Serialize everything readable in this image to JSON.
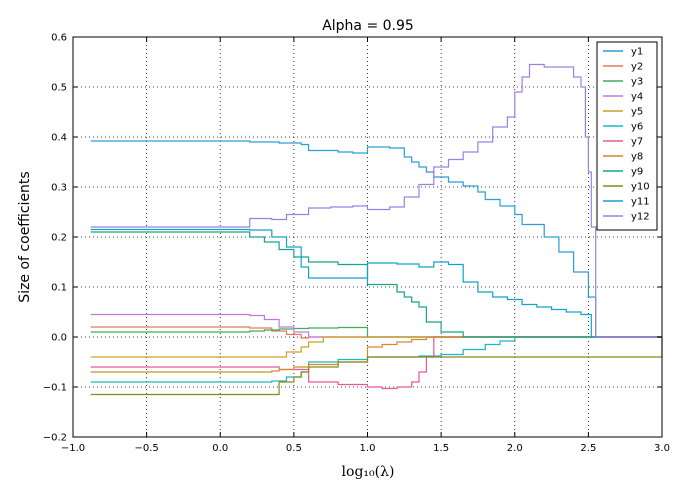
{
  "chart_data": {
    "type": "line",
    "title": "Alpha = 0.95",
    "xlabel": "log₁₀(λ)",
    "ylabel": "Size of coefficients",
    "xlim": [
      -1.0,
      3.0
    ],
    "ylim": [
      -0.2,
      0.6
    ],
    "xticks": [
      -1.0,
      -0.5,
      0.0,
      0.5,
      1.0,
      1.5,
      2.0,
      2.5,
      3.0
    ],
    "xtick_labels": [
      "−1.0",
      "−0.5",
      "0.0",
      "0.5",
      "1.0",
      "1.5",
      "2.0",
      "2.5",
      "3.0"
    ],
    "yticks": [
      -0.2,
      -0.1,
      0.0,
      0.1,
      0.2,
      0.3,
      0.4,
      0.5,
      0.6
    ],
    "ytick_labels": [
      "−0.2",
      "−0.1",
      "0.0",
      "0.1",
      "0.2",
      "0.3",
      "0.4",
      "0.5",
      "0.6"
    ],
    "grid": true,
    "legend_position": "top-right",
    "step": true,
    "series": [
      {
        "name": "y1",
        "color": "#2a9fd6",
        "x": [
          -0.88,
          0.2,
          0.4,
          0.55,
          0.6,
          0.8,
          0.9,
          1.0,
          1.15,
          1.25,
          1.3,
          1.35,
          1.4,
          1.45,
          1.55,
          1.65,
          1.75,
          1.8,
          1.9,
          2.0,
          2.05,
          2.2,
          2.3,
          2.4,
          2.5,
          2.55,
          3.0
        ],
        "y": [
          0.392,
          0.39,
          0.388,
          0.385,
          0.373,
          0.37,
          0.368,
          0.38,
          0.378,
          0.36,
          0.35,
          0.34,
          0.33,
          0.32,
          0.31,
          0.302,
          0.29,
          0.275,
          0.262,
          0.245,
          0.225,
          0.2,
          0.17,
          0.13,
          0.08,
          0.0,
          0.0
        ]
      },
      {
        "name": "y2",
        "color": "#e8795a",
        "x": [
          -0.88,
          0.2,
          0.35,
          0.45,
          0.55,
          0.6,
          3.0
        ],
        "y": [
          0.02,
          0.018,
          0.012,
          0.005,
          -0.002,
          0.0,
          0.0
        ]
      },
      {
        "name": "y3",
        "color": "#3fae5a",
        "x": [
          -0.88,
          0.2,
          0.3,
          0.4,
          0.5,
          0.6,
          0.8,
          1.0,
          3.0
        ],
        "y": [
          0.01,
          0.012,
          0.014,
          0.016,
          0.017,
          0.018,
          0.019,
          0.0,
          0.0
        ]
      },
      {
        "name": "y4",
        "color": "#c07ad8",
        "x": [
          -0.88,
          0.2,
          0.3,
          0.4,
          0.5,
          0.6,
          3.0
        ],
        "y": [
          0.045,
          0.043,
          0.035,
          0.02,
          0.01,
          0.0,
          0.0
        ]
      },
      {
        "name": "y5",
        "color": "#c9a227",
        "x": [
          -0.88,
          0.35,
          0.45,
          0.55,
          0.6,
          0.7,
          3.0
        ],
        "y": [
          -0.04,
          -0.04,
          -0.03,
          -0.02,
          -0.01,
          0.0,
          0.0
        ]
      },
      {
        "name": "y6",
        "color": "#1fb8c6",
        "x": [
          -0.88,
          0.2,
          0.35,
          0.45,
          0.55,
          0.6,
          0.8,
          1.0,
          1.2,
          1.35,
          1.5,
          1.65,
          1.8,
          1.9,
          2.0,
          3.0
        ],
        "y": [
          -0.09,
          -0.09,
          -0.088,
          -0.08,
          -0.07,
          -0.05,
          -0.045,
          -0.04,
          -0.04,
          -0.038,
          -0.035,
          -0.025,
          -0.015,
          -0.008,
          0.0,
          0.0
        ]
      },
      {
        "name": "y7",
        "color": "#e8589a",
        "x": [
          -0.88,
          0.2,
          0.4,
          0.6,
          0.8,
          1.0,
          1.1,
          1.2,
          1.3,
          1.35,
          1.4,
          1.45,
          3.0
        ],
        "y": [
          -0.06,
          -0.06,
          -0.065,
          -0.09,
          -0.095,
          -0.1,
          -0.103,
          -0.1,
          -0.09,
          -0.07,
          -0.04,
          0.0,
          0.0
        ]
      },
      {
        "name": "y8",
        "color": "#d48a2a",
        "x": [
          -0.88,
          0.2,
          0.35,
          0.4,
          0.5,
          0.6,
          0.8,
          1.0,
          1.1,
          1.2,
          1.3,
          1.4,
          3.0
        ],
        "y": [
          -0.07,
          -0.07,
          -0.068,
          -0.065,
          -0.06,
          -0.055,
          -0.05,
          -0.02,
          -0.015,
          -0.01,
          -0.005,
          0.0,
          0.0
        ]
      },
      {
        "name": "y9",
        "color": "#17a589",
        "x": [
          -0.88,
          0.2,
          0.3,
          0.4,
          0.5,
          0.6,
          0.8,
          1.0,
          1.2,
          1.25,
          1.3,
          1.35,
          1.4,
          1.5,
          1.65,
          3.0
        ],
        "y": [
          0.21,
          0.2,
          0.19,
          0.175,
          0.16,
          0.15,
          0.145,
          0.105,
          0.09,
          0.08,
          0.07,
          0.06,
          0.03,
          0.01,
          0.0,
          0.0
        ]
      },
      {
        "name": "y10",
        "color": "#8a8a1a",
        "x": [
          -0.88,
          0.35,
          0.4,
          0.5,
          0.55,
          0.6,
          0.8,
          1.0,
          3.0
        ],
        "y": [
          -0.115,
          -0.115,
          -0.09,
          -0.08,
          -0.07,
          -0.06,
          -0.05,
          -0.04,
          0.0
        ]
      },
      {
        "name": "y11",
        "color": "#10a3c8",
        "x": [
          -0.88,
          0.2,
          0.35,
          0.45,
          0.55,
          0.6,
          1.0,
          1.2,
          1.35,
          1.45,
          1.55,
          1.65,
          1.75,
          1.85,
          1.95,
          2.05,
          2.15,
          2.25,
          2.35,
          2.45,
          2.52,
          3.0
        ],
        "y": [
          0.215,
          0.214,
          0.2,
          0.18,
          0.14,
          0.118,
          0.148,
          0.146,
          0.14,
          0.15,
          0.145,
          0.11,
          0.09,
          0.08,
          0.075,
          0.065,
          0.06,
          0.055,
          0.05,
          0.045,
          0.0,
          0.0
        ]
      },
      {
        "name": "y12",
        "color": "#9b80e6",
        "x": [
          -0.88,
          0.2,
          0.35,
          0.45,
          0.6,
          0.75,
          0.9,
          1.0,
          1.15,
          1.25,
          1.35,
          1.45,
          1.55,
          1.65,
          1.75,
          1.85,
          1.95,
          2.0,
          2.05,
          2.1,
          2.2,
          2.3,
          2.4,
          2.45,
          2.48,
          2.5,
          2.52,
          2.55,
          3.0
        ],
        "y": [
          0.22,
          0.237,
          0.235,
          0.245,
          0.258,
          0.26,
          0.262,
          0.255,
          0.26,
          0.28,
          0.305,
          0.34,
          0.355,
          0.37,
          0.39,
          0.42,
          0.44,
          0.49,
          0.52,
          0.545,
          0.54,
          0.54,
          0.52,
          0.5,
          0.4,
          0.33,
          0.22,
          0.0,
          0.0
        ]
      }
    ]
  }
}
